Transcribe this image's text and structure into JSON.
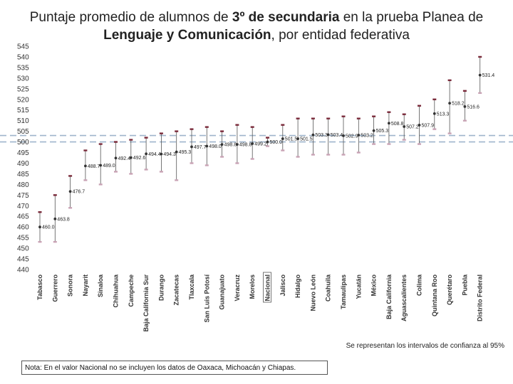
{
  "title": {
    "pre": "Puntaje promedio de alumnos de ",
    "bold1": "3º de secundaria",
    "mid": " en la prueba Planea de",
    "bold2": "Lenguaje y Comunicación",
    "post": ", por entidad federativa"
  },
  "ci_note": "Se representan los intervalos de confianza al 95%",
  "footnote": "Nota: En el valor Nacional no se incluyen los datos de Oaxaca, Michoacán y Chiapas.",
  "colors": {
    "point": "#333333",
    "upper": "#7a2a3a",
    "lower": "#c9a3b5",
    "errorbar": "#555555",
    "reference_line": "#9fb5cc"
  },
  "chart_data": {
    "type": "scatter",
    "title": "Puntaje promedio de alumnos de 3º de secundaria en la prueba Planea de Lenguaje y Comunicación, por entidad federativa",
    "xlabel": "",
    "ylabel": "",
    "ylim": [
      440,
      545
    ],
    "ytick_step": 5,
    "reference_lines": [
      500,
      503
    ],
    "categories": [
      "Tabasco",
      "Guerrero",
      "Sonora",
      "Nayarit",
      "Sinaloa",
      "Chihuahua",
      "Campeche",
      "Baja California Sur",
      "Durango",
      "Zacatecas",
      "Tlaxcala",
      "San Luis Potosí",
      "Guanajuato",
      "Veracruz",
      "Morelos",
      "Nacional",
      "Jalisco",
      "Hidalgo",
      "Nuevo León",
      "Coahuila",
      "Tamaulipas",
      "Yucatán",
      "México",
      "Baja California",
      "Aguascalientes",
      "Colima",
      "Quintana Roo",
      "Querétaro",
      "Puebla",
      "Distrito Federal"
    ],
    "values": [
      460.0,
      463.8,
      476.7,
      488.7,
      489.0,
      492.4,
      492.6,
      494.4,
      494.3,
      495.3,
      497.7,
      498.0,
      498.8,
      498.8,
      499.2,
      500.0,
      501.5,
      501.5,
      503.3,
      503.4,
      502.9,
      503.2,
      505.3,
      508.8,
      507.2,
      507.9,
      513.3,
      518.2,
      516.6,
      531.4
    ],
    "value_labels": [
      "460.0",
      "463.8",
      "476.7",
      "488.7",
      "489.0",
      "492.4",
      "492.6",
      "494.4",
      "494.3",
      "495.3",
      "497.7",
      "498.0",
      "498.8",
      "498.8",
      "499.2",
      "500.0",
      "501.5",
      "501.5",
      "503.3",
      "503.4",
      "502.9",
      "503.2",
      "505.3",
      "508.8",
      "507.2",
      "507.9",
      "513.3",
      "518.2",
      "516.6",
      "531.4"
    ],
    "ci_upper": [
      467,
      475,
      484,
      496,
      499,
      500,
      501,
      502,
      504,
      505,
      506,
      507,
      505,
      508,
      507,
      502,
      508,
      511,
      511,
      511,
      512,
      511,
      512,
      514,
      513,
      517,
      520,
      529,
      524,
      540
    ],
    "ci_lower": [
      453,
      453,
      469,
      482,
      480,
      486,
      485,
      487,
      486,
      482,
      490,
      489,
      493,
      490,
      492,
      498,
      496,
      493,
      494,
      494,
      494,
      495,
      499,
      499,
      501,
      499,
      506,
      504,
      510,
      523
    ],
    "highlight_category": "Nacional"
  }
}
